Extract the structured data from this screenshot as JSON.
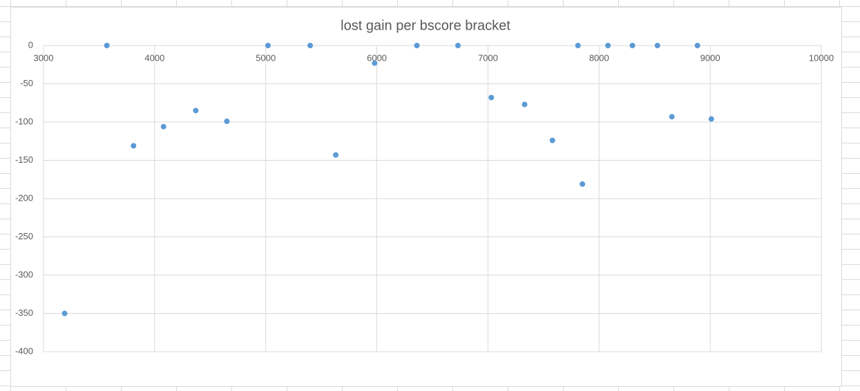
{
  "chart_data": {
    "type": "scatter",
    "title": "lost gain per bscore bracket",
    "x": [
      3190,
      3570,
      3810,
      4080,
      4370,
      4650,
      5020,
      5400,
      5630,
      5980,
      6360,
      6730,
      7030,
      7330,
      7580,
      7810,
      7850,
      8080,
      8300,
      8525,
      8655,
      8885,
      9010
    ],
    "series": [
      {
        "name": "lost gain",
        "color": "#5b9bd5",
        "values": [
          -350,
          0,
          -131,
          -106,
          -85,
          -99,
          0,
          0,
          -143,
          -23,
          0,
          0,
          -68,
          -77,
          -124,
          0,
          -181,
          0,
          0,
          0,
          -93,
          0,
          -96
        ]
      }
    ],
    "xlim": [
      3000,
      10000
    ],
    "xticks": [
      3000,
      4000,
      5000,
      6000,
      7000,
      8000,
      9000,
      10000
    ],
    "ylim": [
      -400,
      0
    ],
    "yticks": [
      0,
      -50,
      -100,
      -150,
      -200,
      -250,
      -300,
      -350,
      -400
    ],
    "grid": true
  }
}
